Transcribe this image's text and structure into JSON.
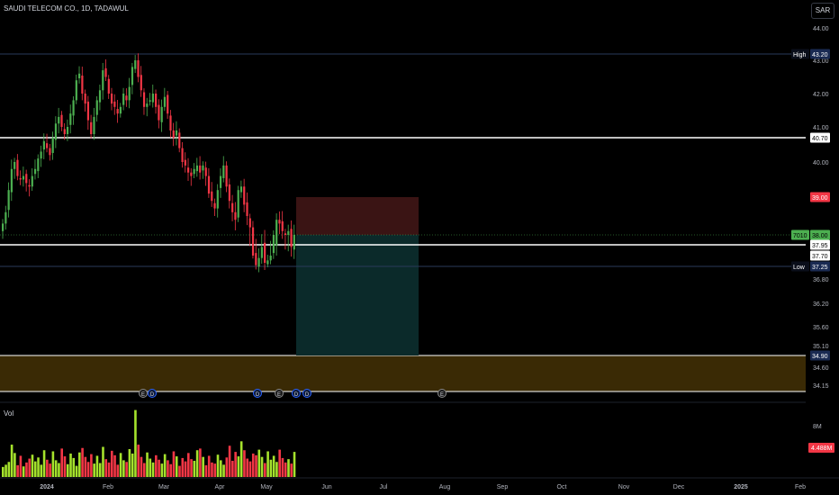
{
  "header": {
    "title": "SAUDI TELECOM CO., 1D, TADAWUL",
    "currency": "SAR"
  },
  "volume_label": "Vol",
  "colors": {
    "background": "#000000",
    "up": "#4caf50",
    "down": "#f23645",
    "volume_up": "#a5e22c",
    "volume_down": "#f23645",
    "stop_zone": "#3a1414",
    "target_zone": "#0b2a2a",
    "support_zone": "#3a2a05",
    "axis_text": "#b2b5be"
  },
  "chart_data": {
    "type": "candlestick",
    "price_scale": {
      "ticks": [
        "44.00",
        "43.00",
        "42.00",
        "41.00",
        "40.00",
        "36.80",
        "36.20",
        "35.60",
        "35.10",
        "34.60",
        "34.15"
      ],
      "badges": [
        {
          "label": "High",
          "value": "43.20",
          "style": "navy"
        },
        {
          "label": "",
          "value": "40.70",
          "style": "white"
        },
        {
          "label": "",
          "value": "39.00",
          "style": "red"
        },
        {
          "label": "7010",
          "value": "38.00",
          "style": "green"
        },
        {
          "label": "",
          "value": "37.95",
          "style": "white"
        },
        {
          "label": "",
          "value": "37.70",
          "style": "white"
        },
        {
          "label": "Low",
          "value": "37.25",
          "style": "navy"
        },
        {
          "label": "",
          "value": "34.90",
          "style": "navy"
        }
      ],
      "volume_ticks": [
        "8M"
      ],
      "volume_badge": "4.488M"
    },
    "time_axis": [
      "2024",
      "Feb",
      "Mar",
      "Apr",
      "May",
      "Jun",
      "Jul",
      "Aug",
      "Sep",
      "Oct",
      "Nov",
      "Dec",
      "2025",
      "Feb"
    ],
    "horizontal_levels": [
      43.2,
      40.7,
      37.95,
      37.7
    ],
    "position": {
      "stop": 39.0,
      "entry": 38.0,
      "target": 34.9
    },
    "support_zone": [
      34.15,
      34.9
    ],
    "event_markers": [
      "E",
      "D",
      "D",
      "E",
      "D",
      "D",
      "E"
    ],
    "series": [
      {
        "close": [
          38.3,
          38.6,
          39.2,
          39.8,
          40.0,
          39.6,
          39.5,
          39.6,
          39.4,
          39.3,
          39.6,
          39.8,
          40.1,
          40.3,
          40.6,
          40.4,
          40.2,
          40.7,
          41.1,
          41.3,
          41.0,
          40.8,
          41.0,
          41.4,
          41.8,
          42.4,
          42.6,
          42.0,
          41.7,
          41.2,
          40.8,
          41.3,
          41.8,
          42.1,
          42.7,
          42.5,
          42.0,
          41.7,
          41.6,
          41.4,
          41.6,
          42.0,
          41.8,
          42.2,
          42.8,
          43.0,
          42.5,
          42.1,
          41.6,
          41.7,
          41.8,
          42.0,
          41.6,
          41.2,
          41.6,
          41.9,
          41.4,
          40.9,
          40.7,
          40.9,
          40.4,
          40.0,
          39.9,
          39.7,
          39.6,
          39.8,
          39.9,
          39.7,
          39.9,
          39.6,
          39.1,
          38.9,
          38.7,
          39.2,
          39.6,
          39.9,
          39.3,
          38.9,
          38.6,
          38.4,
          39.2,
          39.3,
          38.8,
          38.5,
          38.2,
          37.7,
          37.3,
          37.6,
          37.9,
          37.4,
          37.5,
          37.7,
          38.0,
          38.4,
          38.3,
          38.1,
          38.0,
          38.1,
          37.9,
          38.0
        ],
        "volume_millions": [
          1.8,
          2.2,
          2.7,
          5.8,
          4.3,
          2.1,
          3.8,
          1.9,
          2.6,
          3.3,
          4.0,
          2.8,
          3.5,
          2.2,
          4.8,
          3.1,
          2.4,
          4.6,
          3.0,
          2.5,
          5.1,
          3.7,
          2.3,
          4.2,
          3.4,
          2.0,
          4.4,
          5.2,
          3.6,
          2.7,
          4.1,
          2.4,
          3.8,
          2.5,
          5.4,
          3.2,
          2.6,
          4.7,
          3.9,
          2.2,
          4.3,
          3.0,
          2.7,
          5.0,
          4.2,
          12.0,
          5.8,
          3.6,
          2.5,
          4.4,
          3.3,
          2.6,
          3.9,
          3.1,
          2.4,
          4.1,
          3.0,
          2.3,
          4.6,
          3.7,
          2.0,
          3.4,
          2.8,
          4.3,
          3.2,
          2.9,
          4.8,
          5.1,
          3.6,
          2.1,
          3.8,
          2.6,
          2.4,
          4.0,
          3.0,
          2.2,
          3.5,
          5.6,
          2.9,
          4.5,
          3.7,
          6.4,
          4.8,
          3.3,
          2.8,
          4.2,
          3.9,
          4.9,
          3.6,
          2.5,
          4.6,
          3.1,
          3.8,
          2.7,
          4.9,
          3.4,
          2.6,
          3.2,
          2.4,
          4.5
        ]
      }
    ]
  }
}
